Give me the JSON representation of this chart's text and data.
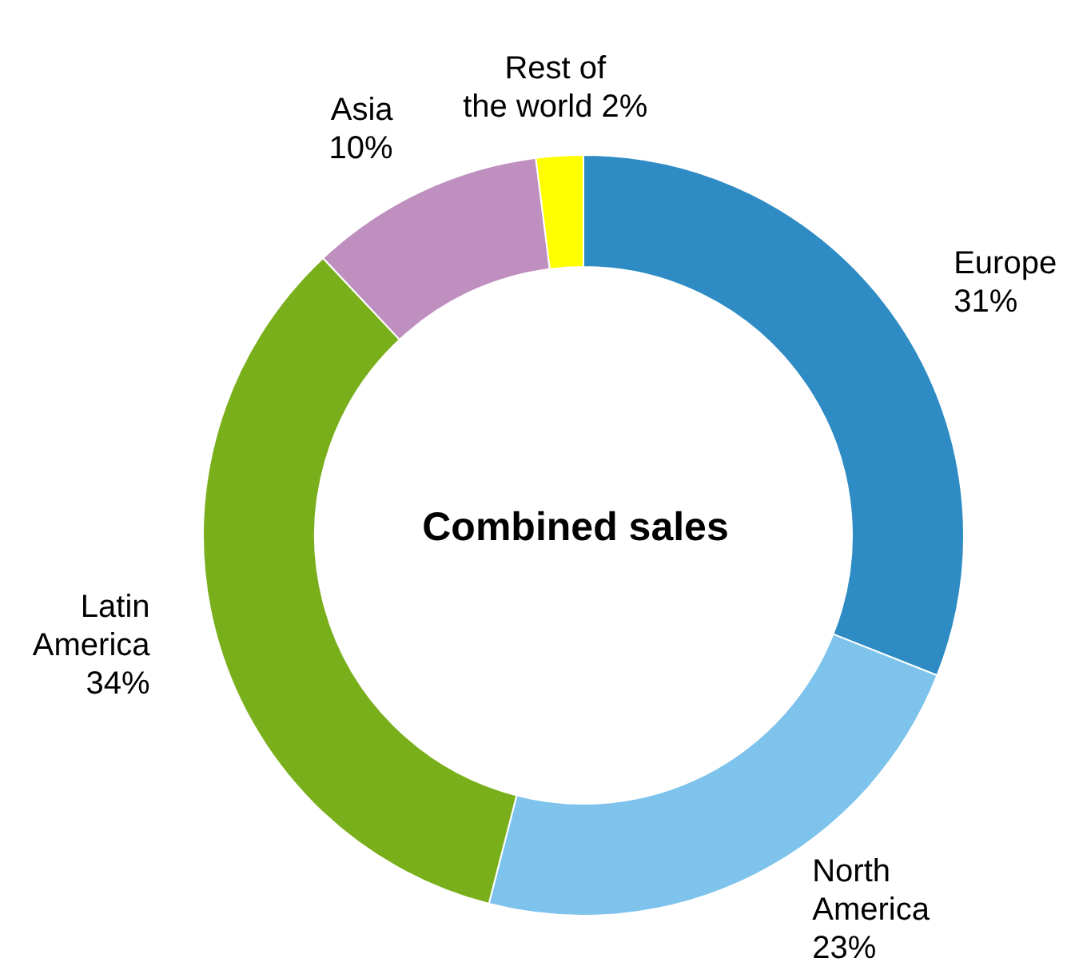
{
  "chart_data": {
    "type": "donut",
    "title": "Combined sales",
    "categories": [
      "Europe",
      "North America",
      "Latin America",
      "Asia",
      "Rest of the world"
    ],
    "values": [
      31,
      23,
      34,
      10,
      2
    ],
    "value_labels": [
      "31%",
      "23%",
      "34%",
      "10%",
      "2%"
    ],
    "colors": [
      "#2e8bc4",
      "#7dc3ec",
      "#7aaf1c",
      "#be8fbf",
      "#ffff00"
    ]
  }
}
